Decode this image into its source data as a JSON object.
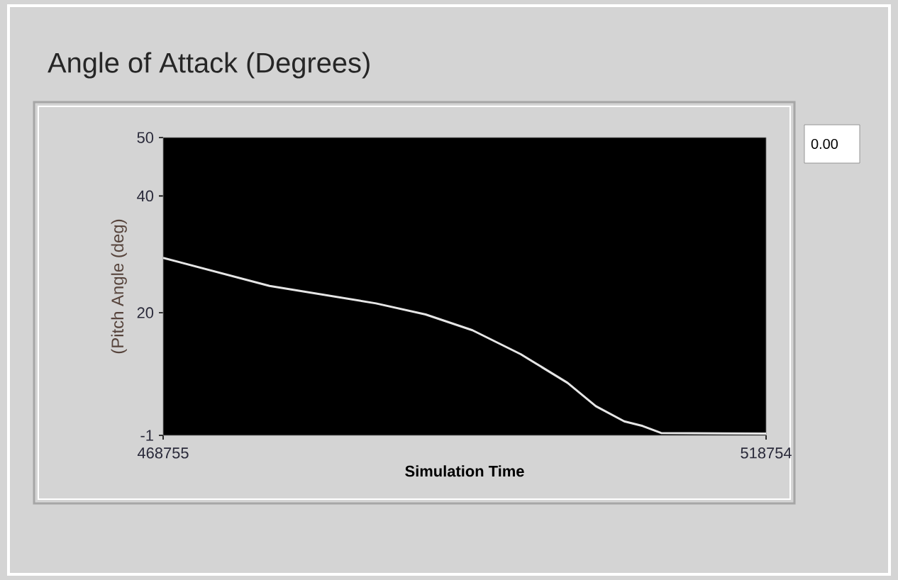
{
  "chart_data": {
    "type": "line",
    "title": "Angle of Attack (Degrees)",
    "xlabel": "Simulation Time",
    "ylabel": "(Pitch Angle (deg)",
    "annotations": [
      "0.00"
    ],
    "x": [
      468755,
      477579,
      486403,
      490520,
      494403,
      498403,
      502285,
      504638,
      506991,
      508520,
      510050,
      518754
    ],
    "values": [
      29.4,
      24.6,
      21.6,
      19.7,
      17.0,
      12.9,
      8.0,
      4.0,
      1.4,
      0.6,
      -0.6,
      -0.7
    ],
    "color": "#e6e6e6",
    "xlim": [
      468755,
      518754
    ],
    "ylim": [
      -1,
      50
    ],
    "xticks": [
      468755,
      518754
    ],
    "yticks": [
      -1,
      20,
      40,
      50
    ]
  }
}
